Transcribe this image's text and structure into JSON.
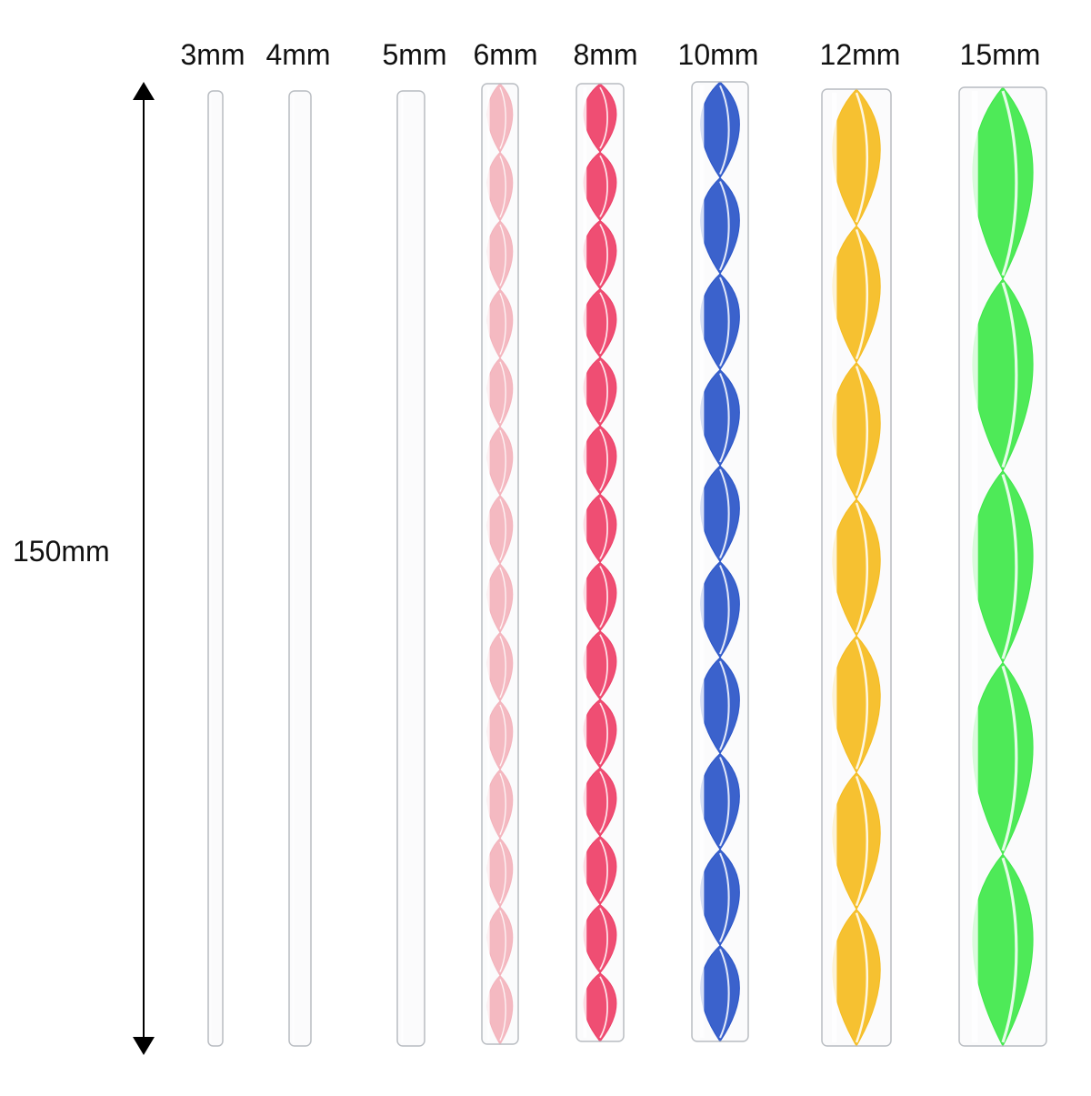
{
  "length_label": "150mm",
  "rods": [
    {
      "label": "3mm",
      "color": "#e8eaec",
      "pattern": "clear"
    },
    {
      "label": "4mm",
      "color": "#e8eaec",
      "pattern": "clear"
    },
    {
      "label": "5mm",
      "color": "#e8eaec",
      "pattern": "clear"
    },
    {
      "label": "6mm",
      "color": "#f3b3bc",
      "pattern": "spiral"
    },
    {
      "label": "8mm",
      "color": "#ee3f67",
      "pattern": "spiral"
    },
    {
      "label": "10mm",
      "color": "#2a55c8",
      "pattern": "spiral"
    },
    {
      "label": "12mm",
      "color": "#f5bc1f",
      "pattern": "spiral"
    },
    {
      "label": "15mm",
      "color": "#3fe84a",
      "pattern": "spiral"
    }
  ]
}
